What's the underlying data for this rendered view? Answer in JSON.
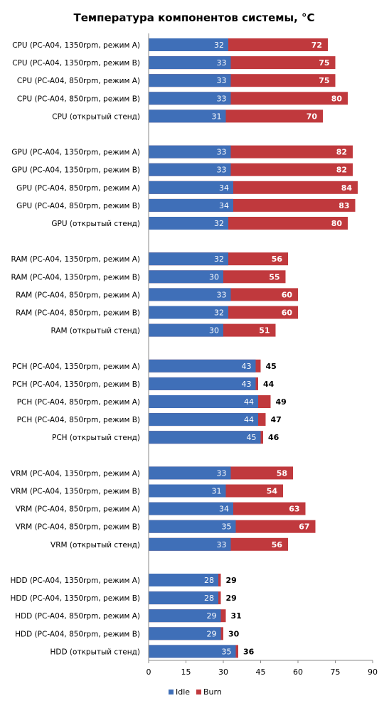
{
  "colors": {
    "idle": "#3f6fb8",
    "burn": "#c0393d",
    "axis": "#888888"
  },
  "chart_data": {
    "type": "bar",
    "orientation": "horizontal",
    "stacking": "overlapped",
    "title": "Температура компонентов системы, °C",
    "xlim": [
      0,
      90
    ],
    "xticks": [
      "0",
      "15",
      "30",
      "45",
      "60",
      "75",
      "90"
    ],
    "grid": false,
    "legend_position": "bottom",
    "groups": [
      {
        "categories": [
          "CPU (PC-A04, 1350rpm, режим A)",
          "CPU (PC-A04, 1350rpm, режим B)",
          "CPU (PC-A04, 850rpm, режим A)",
          "CPU (PC-A04, 850rpm, режим B)",
          "CPU (открытый стенд)"
        ],
        "idle": [
          32,
          33,
          33,
          33,
          31
        ],
        "burn": [
          72,
          75,
          75,
          80,
          70
        ]
      },
      {
        "categories": [
          "GPU (PC-A04, 1350rpm, режим A)",
          "GPU (PC-A04, 1350rpm, режим B)",
          "GPU (PC-A04, 850rpm, режим A)",
          "GPU (PC-A04, 850rpm, режим B)",
          "GPU (открытый стенд)"
        ],
        "idle": [
          33,
          33,
          34,
          34,
          32
        ],
        "burn": [
          82,
          82,
          84,
          83,
          80
        ]
      },
      {
        "categories": [
          "RAM (PC-A04, 1350rpm, режим A)",
          "RAM (PC-A04, 1350rpm, режим B)",
          "RAM (PC-A04, 850rpm, режим A)",
          "RAM (PC-A04, 850rpm, режим B)",
          "RAM (открытый стенд)"
        ],
        "idle": [
          32,
          30,
          33,
          32,
          30
        ],
        "burn": [
          56,
          55,
          60,
          60,
          51
        ]
      },
      {
        "categories": [
          "PCH (PC-A04, 1350rpm, режим A)",
          "PCH (PC-A04, 1350rpm, режим B)",
          "PCH (PC-A04, 850rpm, режим A)",
          "PCH (PC-A04, 850rpm, режим B)",
          "PCH (открытый стенд)"
        ],
        "idle": [
          43,
          43,
          44,
          44,
          45
        ],
        "burn": [
          45,
          44,
          49,
          47,
          46
        ]
      },
      {
        "categories": [
          "VRM (PC-A04, 1350rpm, режим A)",
          "VRM (PC-A04, 1350rpm, режим B)",
          "VRM (PC-A04, 850rpm, режим A)",
          "VRM (PC-A04, 850rpm, режим B)",
          "VRM (открытый стенд)"
        ],
        "idle": [
          33,
          31,
          34,
          35,
          33
        ],
        "burn": [
          58,
          54,
          63,
          67,
          56
        ]
      },
      {
        "categories": [
          "HDD (PC-A04, 1350rpm, режим A)",
          "HDD (PC-A04, 1350rpm, режим B)",
          "HDD (PC-A04, 850rpm, режим A)",
          "HDD (PC-A04, 850rpm, режим B)",
          "HDD (открытый стенд)"
        ],
        "idle": [
          28,
          28,
          29,
          29,
          35
        ],
        "burn": [
          29,
          29,
          31,
          30,
          36
        ]
      }
    ],
    "series": [
      {
        "name": "Idle",
        "key": "idle"
      },
      {
        "name": "Burn",
        "key": "burn"
      }
    ]
  }
}
